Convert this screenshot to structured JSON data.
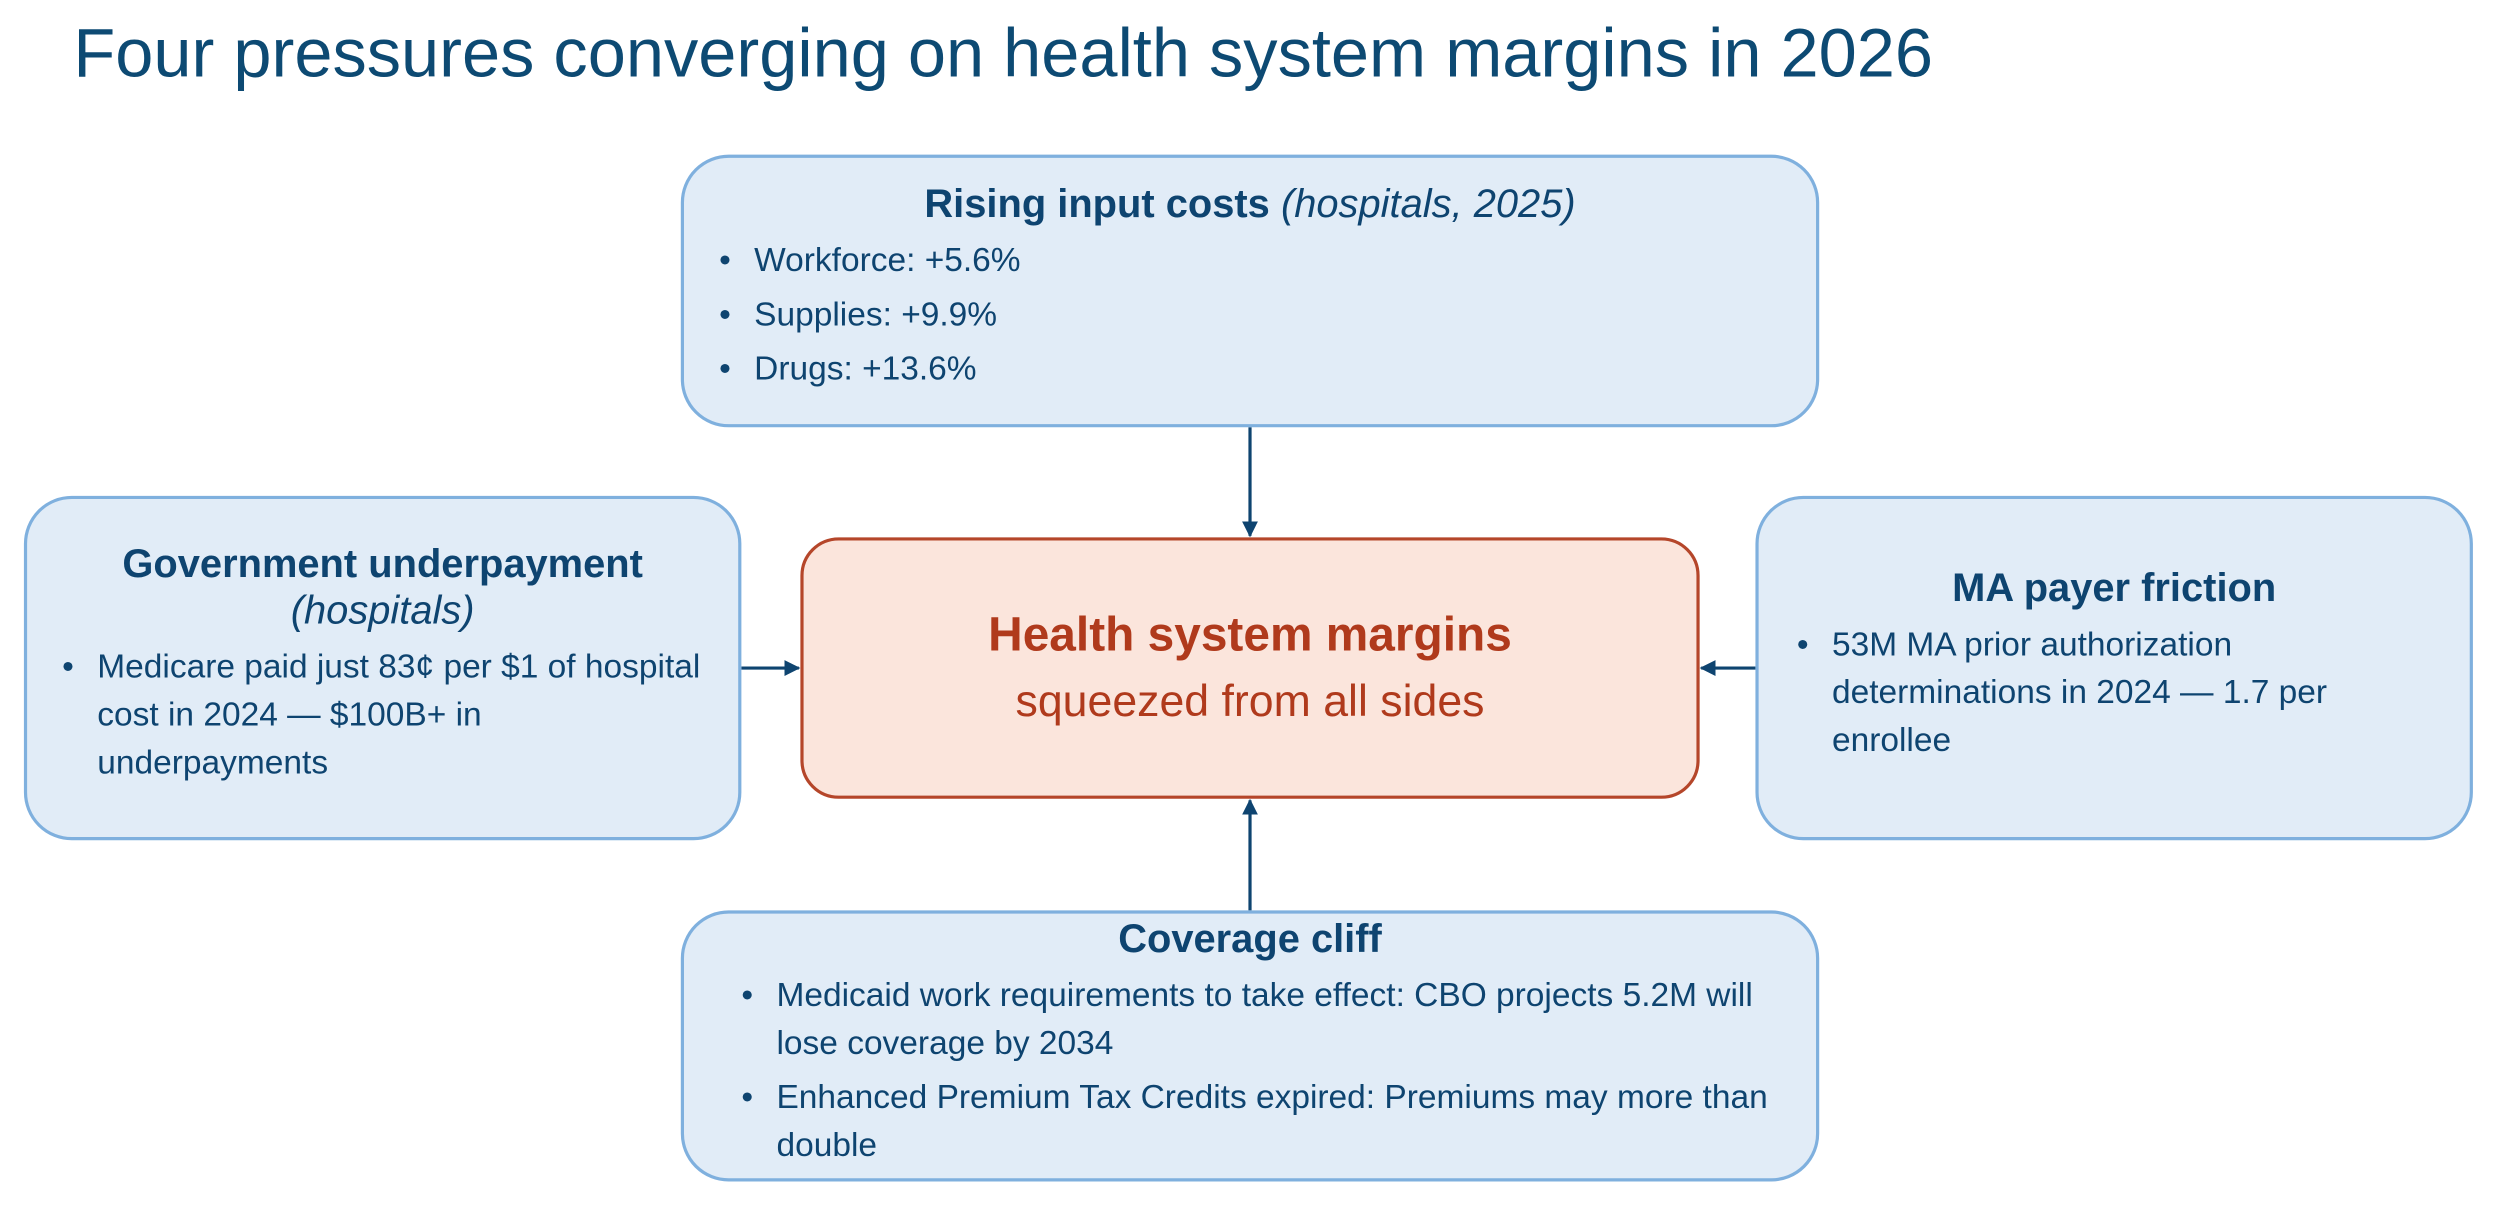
{
  "title": "Four pressures converging on health system margins in 2026",
  "nodes": [
    {
      "title": "Rising input costs",
      "subtitle": "(hospitals, 2025)",
      "bullets": [
        "Workforce: +5.6%",
        "Supplies: +9.9%",
        "Drugs: +13.6%"
      ]
    },
    {
      "title": "Government underpayment",
      "subtitle": "(hospitals)",
      "bullets": [
        "Medicare paid just 83¢ per $1 of hospital cost in 2024 — $100B+ in underpayments"
      ]
    },
    {
      "title": "MA payer friction",
      "bullets": [
        "53M MA prior authorization determinations in 2024 — 1.7 per enrollee"
      ]
    },
    {
      "title": "Coverage cliff",
      "bullets": [
        "Medicaid work requirements to take effect: CBO projects 5.2M will lose coverage by 2034",
        "Enhanced Premium Tax Credits expired: Premiums may more than double"
      ]
    }
  ],
  "center": {
    "title": "Health system margins",
    "subtitle": "squeezed from all sides"
  }
}
